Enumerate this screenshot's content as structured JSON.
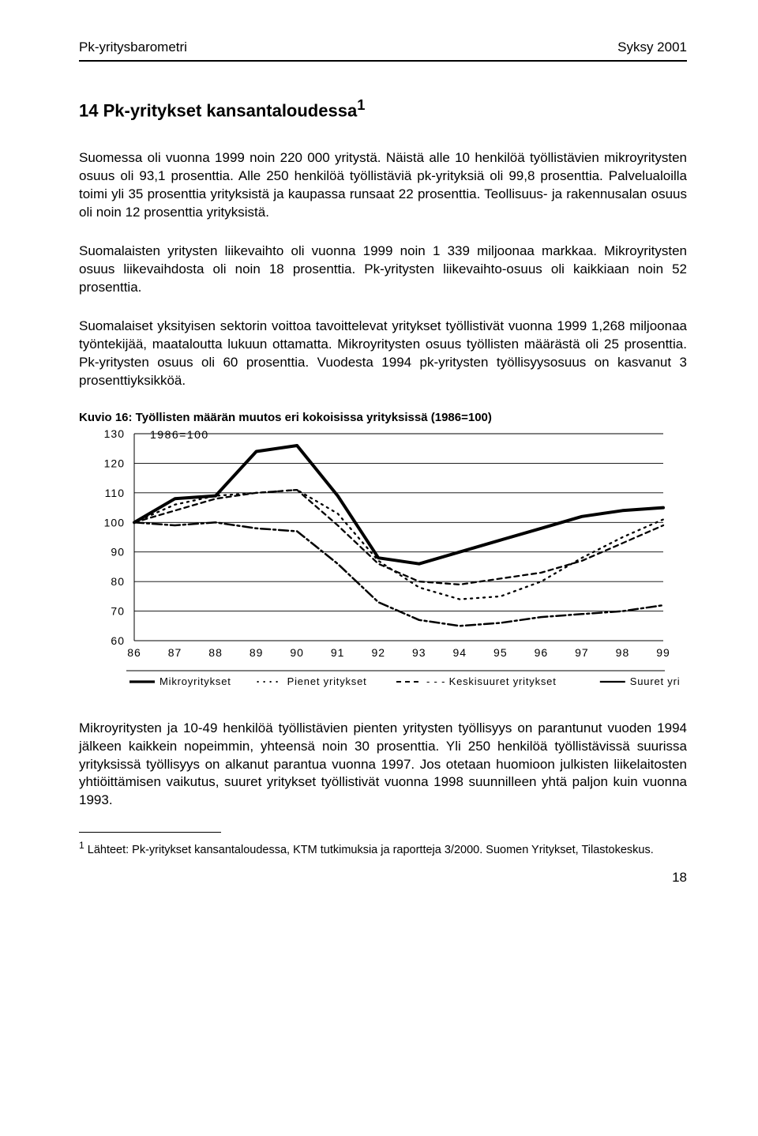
{
  "header": {
    "left": "Pk-yritysbarometri",
    "right": "Syksy 2001"
  },
  "title": "14 Pk-yritykset kansantaloudessa",
  "title_sup": "1",
  "paragraphs": [
    "Suomessa oli vuonna 1999 noin 220 000 yritystä. Näistä alle 10 henkilöä työllistävien mikroyritysten osuus oli 93,1 prosenttia. Alle 250 henkilöä työllistäviä pk-yrityksiä oli 99,8 prosenttia. Palvelualoilla toimi yli 35 prosenttia yrityksistä ja kaupassa runsaat 22 prosenttia. Teollisuus- ja rakennusalan osuus oli noin 12 prosenttia yrityksistä.",
    "Suomalaisten yritysten liikevaihto oli vuonna 1999 noin 1 339 miljoonaa markkaa. Mikroyritysten osuus liikevaihdosta oli noin 18 prosenttia. Pk-yritysten liikevaihto-osuus oli kaikkiaan noin 52 prosenttia.",
    "Suomalaiset yksityisen sektorin voittoa tavoittelevat yritykset työllistivät vuonna 1999 1,268 miljoonaa työntekijää, maataloutta lukuun ottamatta. Mikroyritysten osuus työllisten määrästä oli 25 prosenttia. Pk-yritysten osuus oli 60 prosenttia. Vuodesta 1994 pk-yritysten työllisyysosuus on kasvanut 3 prosenttiyksikköä."
  ],
  "chart": {
    "title": "Kuvio 16: Työllisten määrän muutos eri kokoisissa yrityksissä (1986=100)",
    "subtitle": "1986=100",
    "type": "line",
    "x_labels": [
      "86",
      "87",
      "88",
      "89",
      "90",
      "91",
      "92",
      "93",
      "94",
      "95",
      "96",
      "97",
      "98",
      "99"
    ],
    "y_labels": [
      "60",
      "70",
      "80",
      "90",
      "100",
      "110",
      "120",
      "130"
    ],
    "ylim": [
      60,
      130
    ],
    "series": [
      {
        "name": "Mikroyritykset",
        "values": [
          100,
          108,
          109,
          124,
          126,
          109,
          88,
          86,
          90,
          94,
          98,
          102,
          104,
          105
        ],
        "stroke": "#000000",
        "width": 4,
        "dash": ""
      },
      {
        "name": "Pienet yritykset",
        "values": [
          100,
          106,
          109,
          110,
          111,
          103,
          87,
          78,
          74,
          75,
          80,
          88,
          95,
          101
        ],
        "stroke": "#000000",
        "width": 2.3,
        "dash": "2 6"
      },
      {
        "name": "Keskisuuret yritykset",
        "values": [
          100,
          104,
          108,
          110,
          111,
          99,
          86,
          80,
          79,
          81,
          83,
          87,
          93,
          99
        ],
        "stroke": "#000000",
        "width": 2.3,
        "dash": "6 5"
      },
      {
        "name": "Suuret yritykset",
        "values": [
          100,
          99,
          100,
          98,
          97,
          86,
          73,
          67,
          65,
          66,
          68,
          69,
          70,
          72
        ],
        "stroke": "#000000",
        "width": 2.5,
        "dash": "12 4 3 4"
      }
    ],
    "legend": [
      "Mikroyritykset",
      "Pienet yritykset",
      "Keskisuuret yritykset",
      "Suuret yritykset"
    ],
    "background_color": "#ffffff",
    "grid_color": "#000000",
    "axis_font_size": 14,
    "label_font_size": 14,
    "legend_font_size": 13
  },
  "para_after_chart": "Mikroyritysten ja 10-49 henkilöä työllistävien pienten yritysten työllisyys on parantunut vuoden 1994 jälkeen kaikkein nopeimmin, yhteensä noin 30 prosenttia. Yli 250 henkilöä työllistävissä suurissa yrityksissä työllisyys on alkanut parantua vuonna 1997. Jos otetaan huomioon julkisten liikelaitosten yhtiöittämisen vaikutus, suuret yritykset työllistivät vuonna 1998 suunnilleen yhtä paljon kuin vuonna 1993.",
  "footnote": "Lähteet: Pk-yritykset kansantaloudessa, KTM tutkimuksia ja raportteja 3/2000. Suomen Yritykset, Tilastokeskus.",
  "footnote_marker": "1",
  "page_number": "18"
}
